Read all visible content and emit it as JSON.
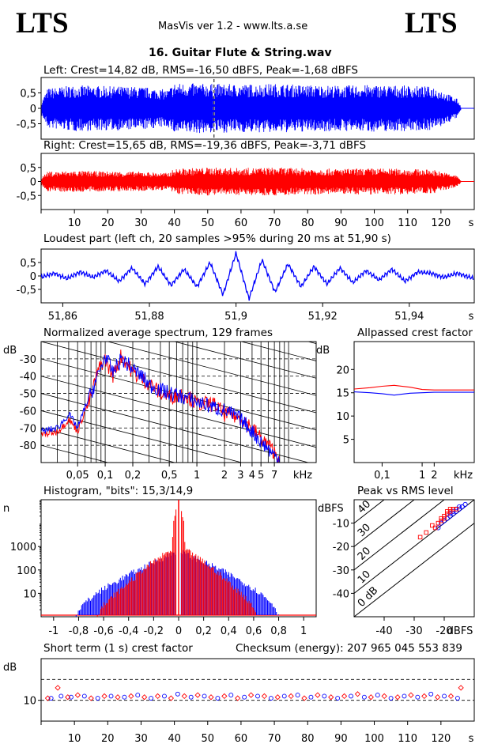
{
  "header": {
    "logo_left": "LTS",
    "logo_right": "LTS",
    "app_title": "MasVis ver 1.2 - www.lts.a.se",
    "file_title": "16. Guitar Flute & String.wav"
  },
  "colors": {
    "left": "#0000ff",
    "right": "#ff0000",
    "frame": "#000000"
  },
  "chart_data": [
    {
      "type": "area",
      "id": "waveform-left",
      "title": "Left: Crest=14,82 dB, RMS=-16,50 dBFS, Peak=-1,68 dBFS",
      "yticks": [
        "0,5",
        "0",
        "-0,5"
      ],
      "ylim": [
        -1,
        1
      ],
      "xlim": [
        0,
        130
      ],
      "marker_x": 51.9,
      "envelope": {
        "x": [
          0,
          2,
          10,
          20,
          30,
          38,
          40,
          50,
          60,
          70,
          80,
          90,
          100,
          110,
          118,
          120,
          125,
          126
        ],
        "peak": [
          0.2,
          0.65,
          0.75,
          0.72,
          0.7,
          0.6,
          0.82,
          0.8,
          0.78,
          0.8,
          0.76,
          0.74,
          0.76,
          0.74,
          0.7,
          0.6,
          0.3,
          0.05
        ]
      }
    },
    {
      "type": "area",
      "id": "waveform-right",
      "title": "Right: Crest=15,65 dB, RMS=-19,36 dBFS, Peak=-3,71 dBFS",
      "yticks": [
        "0,5",
        "0",
        "-0,5"
      ],
      "ylim": [
        -1,
        1
      ],
      "xlim": [
        0,
        130
      ],
      "xticks": [
        "10",
        "20",
        "30",
        "40",
        "50",
        "60",
        "70",
        "80",
        "90",
        "100",
        "110",
        "120"
      ],
      "xunit": "s",
      "envelope": {
        "x": [
          0,
          2,
          10,
          20,
          30,
          38,
          40,
          50,
          60,
          70,
          80,
          90,
          100,
          110,
          118,
          120,
          125,
          126
        ],
        "peak": [
          0.15,
          0.35,
          0.38,
          0.36,
          0.35,
          0.3,
          0.45,
          0.5,
          0.48,
          0.5,
          0.47,
          0.45,
          0.47,
          0.45,
          0.42,
          0.35,
          0.2,
          0.03
        ]
      }
    },
    {
      "type": "line",
      "id": "loudest-part",
      "title": "Loudest part (left  ch, 20 samples >95% during 20 ms at 51,90 s)",
      "yticks": [
        "0,5",
        "0",
        "-0,5"
      ],
      "ylim": [
        -1,
        1
      ],
      "xlim": [
        51.855,
        51.955
      ],
      "xticks": [
        "51,86",
        "51,88",
        "51,9",
        "51,92",
        "51,94"
      ],
      "xunit": "s",
      "series": [
        {
          "x": [
            51.855,
            51.858,
            51.861,
            51.864,
            51.867,
            51.87,
            51.873,
            51.876,
            51.879,
            51.882,
            51.885,
            51.888,
            51.891,
            51.894,
            51.897,
            51.9,
            51.903,
            51.906,
            51.909,
            51.912,
            51.915,
            51.918,
            51.921,
            51.924,
            51.927,
            51.93,
            51.933,
            51.936,
            51.939,
            51.942,
            51.945,
            51.948,
            51.951,
            51.955
          ],
          "y": [
            -0.05,
            0.1,
            -0.1,
            0.15,
            -0.05,
            0.2,
            -0.2,
            0.3,
            -0.3,
            0.35,
            -0.35,
            0.25,
            -0.4,
            0.5,
            -0.7,
            0.85,
            -0.85,
            0.6,
            -0.6,
            0.45,
            -0.4,
            0.35,
            -0.3,
            0.3,
            -0.25,
            0.2,
            -0.15,
            0.25,
            -0.2,
            0.15,
            0.1,
            -0.05,
            0.1,
            -0.1
          ]
        }
      ]
    },
    {
      "type": "line",
      "id": "spectrum",
      "title": "Normalized average spectrum, 129 frames",
      "ylabel": "dB",
      "yticks": [
        "-30",
        "-40",
        "-50",
        "-60",
        "-70",
        "-80"
      ],
      "ylim": [
        -90,
        -20
      ],
      "xscale": "log",
      "xlim": [
        0.02,
        20
      ],
      "xticks": [
        "0,05",
        "0,1",
        "0,2",
        "0,5",
        "1",
        "2",
        "3",
        "4",
        "5",
        "7"
      ],
      "xunit": "kHz",
      "series": [
        {
          "x": [
            0.02,
            0.03,
            0.04,
            0.05,
            0.06,
            0.07,
            0.08,
            0.09,
            0.1,
            0.12,
            0.15,
            0.2,
            0.25,
            0.3,
            0.4,
            0.5,
            0.7,
            1,
            1.5,
            2,
            3,
            4,
            5,
            6,
            7,
            8
          ],
          "y": [
            -72,
            -70,
            -62,
            -70,
            -58,
            -50,
            -42,
            -35,
            -28,
            -38,
            -30,
            -36,
            -40,
            -45,
            -48,
            -50,
            -52,
            -55,
            -58,
            -60,
            -65,
            -72,
            -78,
            -82,
            -86,
            -88
          ]
        },
        {
          "x": [
            0.02,
            0.03,
            0.04,
            0.05,
            0.06,
            0.07,
            0.08,
            0.09,
            0.1,
            0.12,
            0.15,
            0.2,
            0.25,
            0.3,
            0.4,
            0.5,
            0.7,
            1,
            1.5,
            2,
            3,
            4,
            5,
            6,
            7,
            8
          ],
          "y": [
            -74,
            -72,
            -65,
            -72,
            -60,
            -52,
            -40,
            -33,
            -30,
            -40,
            -28,
            -38,
            -42,
            -44,
            -50,
            -52,
            -50,
            -56,
            -56,
            -62,
            -64,
            -70,
            -76,
            -80,
            -84,
            -87
          ]
        }
      ]
    },
    {
      "type": "line",
      "id": "allpassed-crest",
      "title": "Allpassed crest factor",
      "ylabel": "dB",
      "yticks": [
        "20",
        "15",
        "10",
        "5"
      ],
      "ylim": [
        0,
        26
      ],
      "xscale": "log",
      "xlim": [
        0.02,
        20
      ],
      "xticks": [
        "0,1",
        "1",
        "2"
      ],
      "xunit": "kHz",
      "series": [
        {
          "x": [
            0.02,
            0.05,
            0.1,
            0.2,
            0.5,
            1,
            2,
            5,
            20
          ],
          "y": [
            15.2,
            15.0,
            14.8,
            14.5,
            14.9,
            15.0,
            15.1,
            15.1,
            15.1
          ]
        },
        {
          "x": [
            0.02,
            0.05,
            0.1,
            0.2,
            0.5,
            1,
            2,
            5,
            20
          ],
          "y": [
            15.8,
            16.1,
            16.4,
            16.6,
            16.2,
            15.7,
            15.6,
            15.6,
            15.6
          ]
        }
      ]
    },
    {
      "type": "line",
      "id": "histogram",
      "title": "Histogram, \"bits\": 15,3/14,9",
      "ylabel": "n",
      "yscale": "log",
      "yticks": [
        "1000",
        "100",
        "10"
      ],
      "ylim": [
        1,
        100000
      ],
      "xlim": [
        -1.1,
        1.1
      ],
      "xticks": [
        "-1",
        "-0,8",
        "-0,6",
        "-0,4",
        "-0,2",
        "0",
        "0,2",
        "0,4",
        "0,6",
        "0,8",
        "1"
      ],
      "series": [
        {
          "x": [
            -0.82,
            -0.7,
            -0.6,
            -0.5,
            -0.4,
            -0.3,
            -0.2,
            -0.1,
            -0.02,
            0,
            0.02,
            0.1,
            0.2,
            0.3,
            0.4,
            0.5,
            0.6,
            0.7,
            0.8
          ],
          "y": [
            1,
            6,
            15,
            30,
            60,
            110,
            200,
            350,
            600,
            50000,
            600,
            360,
            210,
            120,
            65,
            32,
            15,
            6,
            1
          ]
        },
        {
          "x": [
            -0.65,
            -0.55,
            -0.45,
            -0.35,
            -0.25,
            -0.15,
            -0.05,
            0,
            0.05,
            0.15,
            0.25,
            0.35,
            0.45,
            0.55,
            0.63
          ],
          "y": [
            1,
            5,
            15,
            45,
            130,
            320,
            700,
            50000,
            700,
            320,
            130,
            45,
            15,
            5,
            1
          ]
        }
      ]
    },
    {
      "type": "scatter",
      "id": "peak-vs-rms",
      "title": "Peak vs RMS level",
      "ylabel": "dBFS",
      "xlabel": "dBFS",
      "yticks": [
        "-10",
        "-20",
        "-30",
        "-40"
      ],
      "xticks": [
        "-40",
        "-30",
        "-20"
      ],
      "xlim": [
        -50,
        -10
      ],
      "ylim": [
        -50,
        0
      ],
      "crest_lines": [
        "40",
        "30",
        "20",
        "10",
        "0 dB"
      ],
      "series": [
        {
          "x": [
            -14,
            -15,
            -16,
            -17,
            -18,
            -19,
            -20,
            -21,
            -22,
            -18,
            -16,
            -15,
            -13,
            -14,
            -17
          ],
          "y": [
            -3,
            -4,
            -5,
            -6,
            -7,
            -8,
            -9,
            -10,
            -12,
            -6,
            -4,
            -3,
            -2,
            -3,
            -5
          ]
        },
        {
          "x": [
            -17,
            -18,
            -19,
            -20,
            -21,
            -22,
            -23,
            -26,
            -28,
            -19,
            -18,
            -16,
            -20,
            -21,
            -24
          ],
          "y": [
            -4,
            -5,
            -6,
            -8,
            -9,
            -10,
            -12,
            -14,
            -16,
            -5,
            -4,
            -4,
            -7,
            -8,
            -11
          ]
        }
      ]
    },
    {
      "type": "scatter",
      "id": "short-term-crest",
      "title": "Short term (1 s) crest factor",
      "subtitle": "Checksum (energy):  207 965 045 553 839",
      "ylabel": "dB",
      "yticks": [
        "10"
      ],
      "ylim": [
        0,
        30
      ],
      "xlim": [
        0,
        130
      ],
      "xticks": [
        "10",
        "20",
        "30",
        "40",
        "50",
        "60",
        "70",
        "80",
        "90",
        "100",
        "110",
        "120"
      ],
      "xunit": "s",
      "series": [
        {
          "x": [
            3,
            6,
            9,
            13,
            17,
            21,
            25,
            29,
            33,
            37,
            41,
            45,
            49,
            53,
            57,
            61,
            65,
            69,
            73,
            77,
            81,
            85,
            89,
            93,
            97,
            101,
            105,
            109,
            113,
            117,
            121,
            125
          ],
          "y": [
            11,
            12,
            11.5,
            12,
            11,
            12,
            11.5,
            12.5,
            11,
            12,
            13,
            11.5,
            12,
            11,
            12.5,
            11.5,
            12,
            11,
            12,
            12.5,
            11.5,
            12,
            11,
            12,
            11.5,
            12.5,
            11,
            12,
            11.5,
            13,
            12,
            11
          ]
        },
        {
          "x": [
            2,
            5,
            8,
            11,
            15,
            19,
            23,
            27,
            31,
            35,
            39,
            43,
            47,
            51,
            55,
            59,
            63,
            67,
            71,
            75,
            79,
            83,
            87,
            91,
            95,
            99,
            103,
            107,
            111,
            115,
            119,
            123,
            126
          ],
          "y": [
            11,
            16,
            11.5,
            12.5,
            11,
            12,
            11.5,
            12,
            11.5,
            12,
            11,
            12,
            12.5,
            11.5,
            12,
            11,
            12.5,
            12,
            11.5,
            12,
            11,
            12.5,
            11.5,
            12,
            13,
            11.5,
            12,
            11.5,
            12.5,
            12,
            11.5,
            12,
            16
          ]
        }
      ]
    }
  ]
}
